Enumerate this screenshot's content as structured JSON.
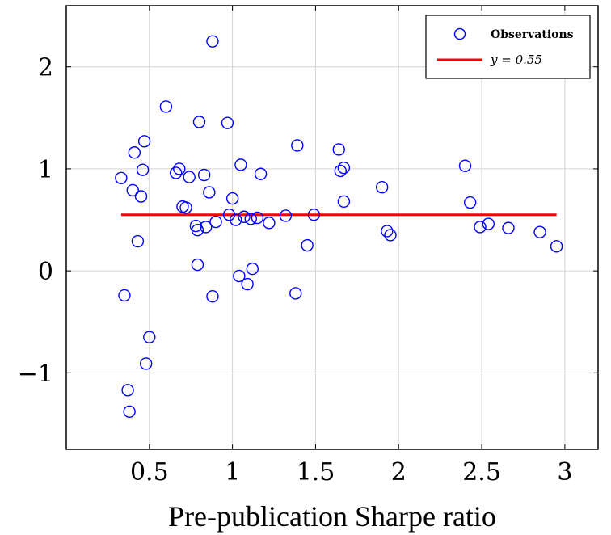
{
  "chart_data": {
    "type": "scatter",
    "xlabel": "Pre-publication Sharpe ratio",
    "ylabel": "",
    "xlim": [
      0.0,
      3.2
    ],
    "ylim": [
      -1.75,
      2.6
    ],
    "xticks": [
      0.5,
      1,
      1.5,
      2,
      2.5,
      3
    ],
    "xtick_labels": [
      "0.5",
      "1",
      "1.5",
      "2",
      "2.5",
      "3"
    ],
    "yticks": [
      -1,
      0,
      1,
      2
    ],
    "ytick_labels": [
      "−1",
      "0",
      "1",
      "2"
    ],
    "grid": true,
    "legend_position": "top-right",
    "colors": {
      "observations": "#0000ff",
      "fit_line": "#ff0000"
    },
    "series": [
      {
        "name": "Observations",
        "kind": "scatter",
        "marker": "open-circle",
        "points": [
          [
            0.33,
            0.91
          ],
          [
            0.35,
            -0.24
          ],
          [
            0.37,
            -1.17
          ],
          [
            0.38,
            -1.38
          ],
          [
            0.4,
            0.79
          ],
          [
            0.41,
            1.16
          ],
          [
            0.43,
            0.29
          ],
          [
            0.45,
            0.73
          ],
          [
            0.46,
            0.99
          ],
          [
            0.47,
            1.27
          ],
          [
            0.48,
            -0.91
          ],
          [
            0.5,
            -0.65
          ],
          [
            0.6,
            1.61
          ],
          [
            0.66,
            0.96
          ],
          [
            0.68,
            1.0
          ],
          [
            0.7,
            0.63
          ],
          [
            0.72,
            0.62
          ],
          [
            0.74,
            0.92
          ],
          [
            0.78,
            0.44
          ],
          [
            0.79,
            0.4
          ],
          [
            0.79,
            0.06
          ],
          [
            0.8,
            1.46
          ],
          [
            0.83,
            0.94
          ],
          [
            0.84,
            0.43
          ],
          [
            0.86,
            0.77
          ],
          [
            0.88,
            2.25
          ],
          [
            0.88,
            -0.25
          ],
          [
            0.9,
            0.48
          ],
          [
            0.97,
            1.45
          ],
          [
            0.98,
            0.55
          ],
          [
            1.0,
            0.71
          ],
          [
            1.02,
            0.5
          ],
          [
            1.04,
            -0.05
          ],
          [
            1.05,
            1.04
          ],
          [
            1.07,
            0.53
          ],
          [
            1.09,
            -0.13
          ],
          [
            1.11,
            0.51
          ],
          [
            1.12,
            0.02
          ],
          [
            1.15,
            0.52
          ],
          [
            1.17,
            0.95
          ],
          [
            1.22,
            0.47
          ],
          [
            1.32,
            0.54
          ],
          [
            1.38,
            -0.22
          ],
          [
            1.39,
            1.23
          ],
          [
            1.45,
            0.25
          ],
          [
            1.49,
            0.55
          ],
          [
            1.64,
            1.19
          ],
          [
            1.65,
            0.98
          ],
          [
            1.67,
            1.01
          ],
          [
            1.67,
            0.68
          ],
          [
            1.9,
            0.82
          ],
          [
            1.93,
            0.39
          ],
          [
            1.95,
            0.35
          ],
          [
            2.4,
            1.03
          ],
          [
            2.43,
            0.67
          ],
          [
            2.49,
            0.43
          ],
          [
            2.54,
            0.46
          ],
          [
            2.66,
            0.42
          ],
          [
            2.85,
            0.38
          ],
          [
            2.95,
            0.24
          ]
        ]
      },
      {
        "name": "y = 0.55",
        "kind": "line",
        "x": [
          0.33,
          2.95
        ],
        "y": [
          0.55,
          0.55
        ]
      }
    ]
  }
}
